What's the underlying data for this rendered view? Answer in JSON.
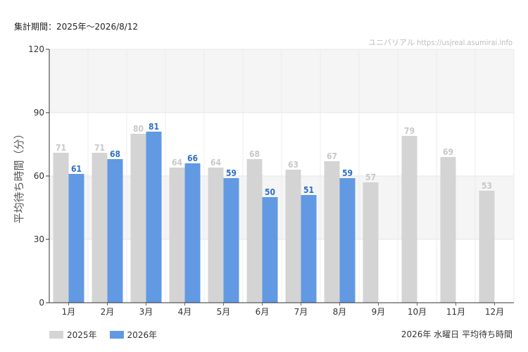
{
  "header": {
    "period_label": "集計期間：2025年～2026/8/12",
    "watermark": "ユニバリアル  https://usjreal.asumirai.info"
  },
  "footer": {
    "caption": "2026年 水曜日 平均待ち時間"
  },
  "chart_data": {
    "type": "bar",
    "title": "",
    "xlabel": "",
    "ylabel": "平均待ち時間（分）",
    "ylim": [
      0,
      120
    ],
    "yticks": [
      0,
      30,
      60,
      90,
      120
    ],
    "grid": true,
    "legend_position": "bottom-left",
    "categories": [
      "1月",
      "2月",
      "3月",
      "4月",
      "5月",
      "6月",
      "7月",
      "8月",
      "9月",
      "10月",
      "11月",
      "12月"
    ],
    "series": [
      {
        "name": "2025年",
        "color": "#d4d4d4",
        "label_color": "#c8c8c8",
        "values": [
          71,
          71,
          80,
          64,
          64,
          68,
          63,
          67,
          57,
          79,
          69,
          53
        ]
      },
      {
        "name": "2026年",
        "color": "#6199e3",
        "label_color": "#2f6fc4",
        "values": [
          61,
          68,
          81,
          66,
          59,
          50,
          51,
          59,
          null,
          null,
          null,
          null
        ]
      }
    ]
  }
}
